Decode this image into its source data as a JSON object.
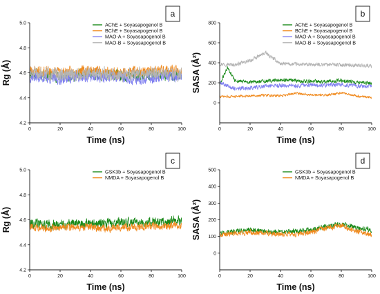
{
  "chart_data": [
    {
      "panel": "a",
      "type": "line",
      "xlabel": "Time (ns)",
      "ylabel": "Rg (Å)",
      "xlim": [
        0,
        100
      ],
      "ylim": [
        4.2,
        5.0
      ],
      "xticks": [
        "0",
        "20",
        "40",
        "60",
        "80",
        "100"
      ],
      "yticks": [
        "4.2",
        "4.4",
        "4.6",
        "4.8",
        "5.0"
      ],
      "legend_position": "top-right",
      "grid": false,
      "series": [
        {
          "name": "AChE + Soyasapogenol B",
          "color": "#1a8a1a",
          "mean": 4.58,
          "amplitude": 0.05,
          "seed": 11,
          "x": [
            0,
            10,
            20,
            30,
            40,
            50,
            60,
            70,
            80,
            90,
            100
          ],
          "values": [
            4.6,
            4.58,
            4.57,
            4.58,
            4.59,
            4.58,
            4.58,
            4.57,
            4.58,
            4.58,
            4.57
          ]
        },
        {
          "name": "BChE + Soyasapogenol B",
          "color": "#f08a1e",
          "mean": 4.61,
          "amplitude": 0.05,
          "seed": 23,
          "x": [
            0,
            10,
            20,
            30,
            40,
            50,
            60,
            70,
            80,
            90,
            100
          ],
          "values": [
            4.62,
            4.61,
            4.6,
            4.61,
            4.62,
            4.61,
            4.6,
            4.61,
            4.61,
            4.62,
            4.61
          ]
        },
        {
          "name": "MAO-A + Soyasapogenol B",
          "color": "#8080f0",
          "mean": 4.56,
          "amplitude": 0.05,
          "seed": 37,
          "x": [
            0,
            10,
            20,
            30,
            40,
            50,
            60,
            70,
            80,
            90,
            100
          ],
          "values": [
            4.57,
            4.56,
            4.55,
            4.56,
            4.57,
            4.56,
            4.56,
            4.55,
            4.56,
            4.57,
            4.56
          ]
        },
        {
          "name": "MAO-B + Soyasapogenol B",
          "color": "#b4b4b4",
          "mean": 4.59,
          "amplitude": 0.06,
          "seed": 51,
          "x": [
            0,
            10,
            20,
            30,
            40,
            50,
            60,
            70,
            80,
            90,
            100
          ],
          "values": [
            4.59,
            4.6,
            4.58,
            4.59,
            4.6,
            4.59,
            4.58,
            4.59,
            4.6,
            4.59,
            4.58
          ]
        }
      ]
    },
    {
      "panel": "b",
      "type": "line",
      "xlabel": "Time (ns)",
      "ylabel": "SASA (Å²)",
      "xlim": [
        0,
        100
      ],
      "ylim": [
        -200,
        800
      ],
      "xticks": [
        "0",
        "20",
        "40",
        "60",
        "80",
        "100"
      ],
      "yticks": [
        "0",
        "200",
        "400",
        "600",
        "800"
      ],
      "legend_position": "top-right",
      "grid": false,
      "series": [
        {
          "name": "AChE + Soyasapogenol B",
          "color": "#1a8a1a",
          "mean": 215,
          "amplitude": 22,
          "seed": 61,
          "x": [
            0,
            5,
            10,
            20,
            30,
            40,
            50,
            60,
            70,
            80,
            90,
            100
          ],
          "values": [
            180,
            350,
            220,
            205,
            215,
            230,
            220,
            215,
            210,
            225,
            205,
            195
          ]
        },
        {
          "name": "BChE + Soyasapogenol B",
          "color": "#f08a1e",
          "mean": 70,
          "amplitude": 15,
          "seed": 73,
          "x": [
            0,
            10,
            20,
            30,
            40,
            50,
            60,
            70,
            80,
            90,
            100
          ],
          "values": [
            60,
            65,
            70,
            75,
            70,
            95,
            80,
            75,
            100,
            70,
            55
          ]
        },
        {
          "name": "MAO-A + Soyasapogenol B",
          "color": "#8080f0",
          "mean": 165,
          "amplitude": 25,
          "seed": 89,
          "x": [
            0,
            10,
            20,
            30,
            40,
            50,
            60,
            70,
            80,
            90,
            100
          ],
          "values": [
            200,
            140,
            150,
            165,
            175,
            170,
            180,
            175,
            185,
            170,
            160
          ]
        },
        {
          "name": "MAO-B + Soyasapogenol B",
          "color": "#b4b4b4",
          "mean": 385,
          "amplitude": 22,
          "seed": 97,
          "x": [
            0,
            10,
            20,
            30,
            40,
            50,
            60,
            70,
            80,
            90,
            100
          ],
          "values": [
            390,
            380,
            420,
            500,
            390,
            385,
            380,
            385,
            380,
            375,
            370
          ]
        }
      ]
    },
    {
      "panel": "c",
      "type": "line",
      "xlabel": "Time (ns)",
      "ylabel": "Rg (Å)",
      "xlim": [
        0,
        100
      ],
      "ylim": [
        4.2,
        5.0
      ],
      "xticks": [
        "0",
        "20",
        "40",
        "60",
        "80",
        "100"
      ],
      "yticks": [
        "4.2",
        "4.4",
        "4.6",
        "4.8",
        "5.0"
      ],
      "legend_position": "top-right",
      "grid": false,
      "series": [
        {
          "name": "GSK3b + Soyasapogenol B",
          "color": "#1a8a1a",
          "mean": 4.57,
          "amplitude": 0.045,
          "seed": 113,
          "x": [
            0,
            10,
            20,
            30,
            40,
            50,
            60,
            70,
            80,
            90,
            100
          ],
          "values": [
            4.58,
            4.56,
            4.56,
            4.57,
            4.57,
            4.57,
            4.58,
            4.58,
            4.58,
            4.58,
            4.6
          ]
        },
        {
          "name": "NMDA + Soyasapogenol B",
          "color": "#f08a1e",
          "mean": 4.54,
          "amplitude": 0.035,
          "seed": 127,
          "x": [
            0,
            10,
            20,
            30,
            40,
            50,
            60,
            70,
            80,
            90,
            100
          ],
          "values": [
            4.55,
            4.53,
            4.54,
            4.54,
            4.54,
            4.53,
            4.54,
            4.54,
            4.55,
            4.55,
            4.56
          ]
        }
      ]
    },
    {
      "panel": "d",
      "type": "line",
      "xlabel": "Time (ns)",
      "ylabel": "SASA (Å²)",
      "xlim": [
        0,
        100
      ],
      "ylim": [
        -100,
        500
      ],
      "xticks": [
        "0",
        "20",
        "40",
        "60",
        "80",
        "100"
      ],
      "yticks": [
        "0",
        "100",
        "200",
        "300",
        "400",
        "500"
      ],
      "legend_position": "top-right",
      "grid": false,
      "series": [
        {
          "name": "GSK3b + Soyasapogenol B",
          "color": "#1a8a1a",
          "mean": 135,
          "amplitude": 18,
          "seed": 131,
          "x": [
            0,
            10,
            20,
            30,
            40,
            50,
            60,
            70,
            80,
            90,
            100
          ],
          "values": [
            120,
            130,
            140,
            130,
            125,
            130,
            140,
            160,
            175,
            150,
            140
          ]
        },
        {
          "name": "NMDA + Soyasapogenol B",
          "color": "#f08a1e",
          "mean": 120,
          "amplitude": 18,
          "seed": 149,
          "x": [
            0,
            10,
            20,
            30,
            40,
            50,
            60,
            70,
            80,
            90,
            100
          ],
          "values": [
            110,
            120,
            125,
            120,
            115,
            110,
            125,
            150,
            165,
            130,
            110
          ]
        }
      ]
    }
  ]
}
